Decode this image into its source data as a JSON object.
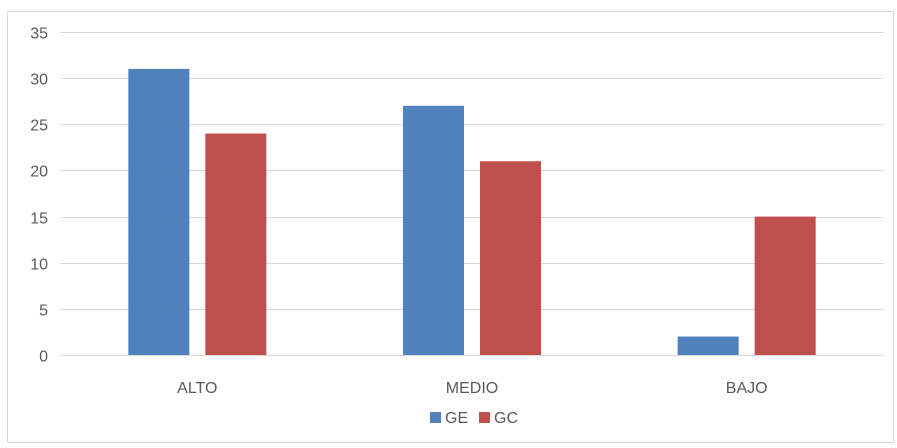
{
  "chart_data": {
    "type": "bar",
    "title": "",
    "xlabel": "",
    "ylabel": "",
    "categories": [
      "ALTO",
      "MEDIO",
      "BAJO"
    ],
    "series": [
      {
        "name": "GE",
        "values": [
          31,
          27,
          2
        ],
        "color": "#4f81bd"
      },
      {
        "name": "GC",
        "values": [
          24,
          21,
          15
        ],
        "color": "#c0504d"
      }
    ],
    "ylim": [
      0,
      35
    ],
    "yticks": [
      0,
      5,
      10,
      15,
      20,
      25,
      30,
      35
    ],
    "grid": true,
    "legend": "bottom"
  }
}
